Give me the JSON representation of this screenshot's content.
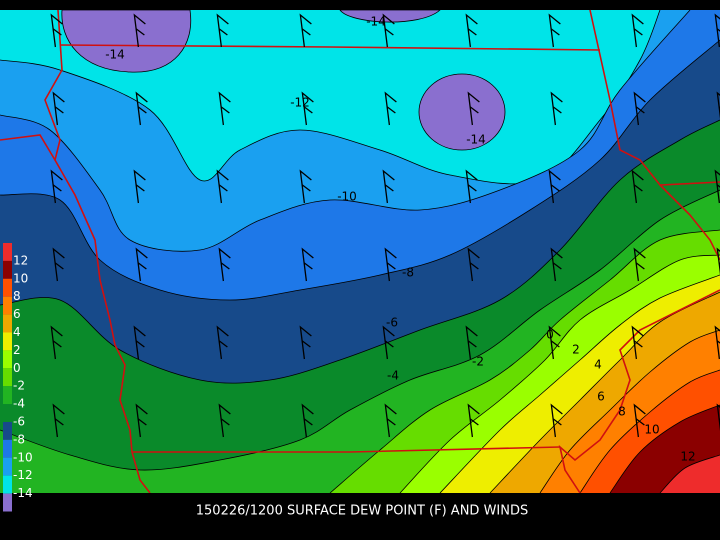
{
  "caption": "150226/1200 SURFACE DEW POINT (F) AND WINDS",
  "legend": {
    "labels": [
      "12",
      "10",
      "8",
      "6",
      "4",
      "2",
      "0",
      "-2",
      "-4",
      "-6",
      "-8",
      "-10",
      "-12",
      "-14"
    ],
    "colors": [
      "#ee2c2c",
      "#8b0000",
      "#ff5000",
      "#ff8000",
      "#eea800",
      "#eeee00",
      "#9aff00",
      "#66dd00",
      "#22b422",
      "#0a8a2a",
      "#174a8a",
      "#1e78e8",
      "#1aa0f0",
      "#00e4e8",
      "#8a6fcf"
    ]
  },
  "contour_labels": [
    "-14",
    "-14",
    "-12",
    "-14",
    "-10",
    "-8",
    "-6",
    "-4",
    "-2",
    "0",
    "2",
    "4",
    "6",
    "8",
    "10",
    "12"
  ]
}
